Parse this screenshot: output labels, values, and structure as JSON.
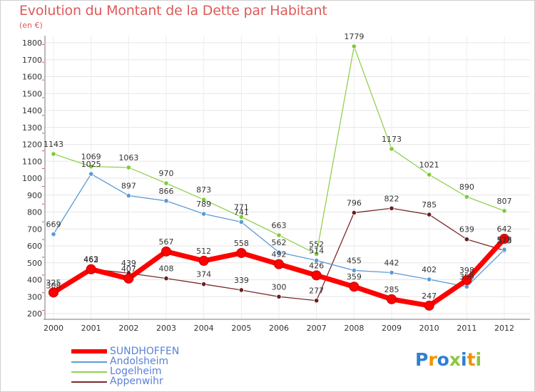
{
  "header": {
    "title": "Evolution du Montant de la Dette par Habitant",
    "subtitle": "(en €)"
  },
  "brand": {
    "text": "Proxiti",
    "letter_colors": [
      "#2e7fd1",
      "#f29200",
      "#2e7fd1",
      "#8dc63f",
      "#2e7fd1",
      "#f29200",
      "#8dc63f"
    ]
  },
  "chart_data": {
    "type": "line",
    "title": "Evolution du Montant de la Dette par Habitant",
    "subtitle": "(en €)",
    "xlabel": "",
    "ylabel": "",
    "x": [
      "2000",
      "2001",
      "2002",
      "2003",
      "2004",
      "2005",
      "2006",
      "2007",
      "2008",
      "2009",
      "2010",
      "2011",
      "2012"
    ],
    "ylim": [
      200,
      1800
    ],
    "yticks": [
      200,
      300,
      400,
      500,
      600,
      700,
      800,
      900,
      1000,
      1100,
      1200,
      1300,
      1400,
      1500,
      1600,
      1700,
      1800
    ],
    "grid": true,
    "legend_position": "bottom-left",
    "series": [
      {
        "name": "SUNDHOFFEN",
        "color": "#ff0000",
        "marker": "#ff0000",
        "emphasis": true,
        "values": [
          325,
          462,
          407,
          567,
          512,
          558,
          492,
          426,
          359,
          285,
          247,
          398,
          642
        ]
      },
      {
        "name": "Andolsheim",
        "color": "#5b9bd5",
        "marker": "#5b9bd5",
        "values": [
          669,
          1025,
          897,
          866,
          789,
          741,
          562,
          514,
          455,
          442,
          402,
          359,
          578
        ]
      },
      {
        "name": "Logelheim",
        "color": "#92d050",
        "marker": "#7ccc36",
        "values": [
          1143,
          1069,
          1063,
          970,
          873,
          771,
          663,
          552,
          1779,
          1173,
          1021,
          890,
          807
        ]
      },
      {
        "name": "Appenwihr",
        "color": "#7b2a2a",
        "marker": "#6b1f1f",
        "values": [
          308,
          463,
          439,
          408,
          374,
          339,
          300,
          277,
          796,
          822,
          785,
          639,
          573
        ]
      }
    ],
    "labels_shown": [
      [
        "325",
        "462",
        "407",
        "567",
        "512",
        "558",
        "492",
        "426",
        "359",
        "285",
        "247",
        "398",
        "642"
      ],
      [
        "669",
        "1025",
        "897",
        "866",
        "789",
        "741",
        "562",
        "514",
        "455",
        "442",
        "402",
        "359",
        "578"
      ],
      [
        "1143",
        "1069",
        "1063",
        "970",
        "873",
        "771",
        "663",
        "552",
        "1779",
        "1173",
        "1021",
        "890",
        "807"
      ],
      [
        "308",
        "463",
        "439",
        "408",
        "374",
        "339",
        "300",
        "277",
        "796",
        "822",
        "785",
        "639",
        "573"
      ]
    ]
  }
}
